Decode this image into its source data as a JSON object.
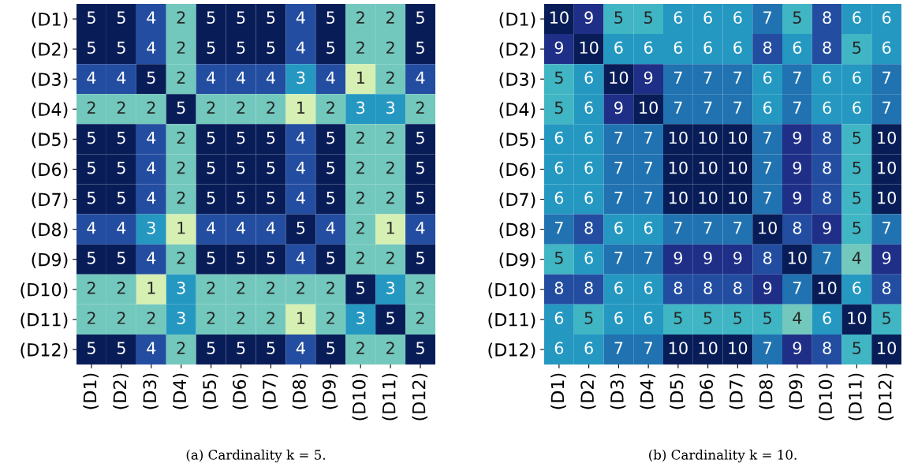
{
  "chart_data": [
    {
      "type": "heatmap",
      "categories": [
        "(D1)",
        "(D2)",
        "(D3)",
        "(D4)",
        "(D5)",
        "(D6)",
        "(D7)",
        "(D8)",
        "(D9)",
        "(D10)",
        "(D11)",
        "(D12)"
      ],
      "y_categories": [
        "(D1)",
        "(D2)",
        "(D3)",
        "(D4)",
        "(D5)",
        "(D6)",
        "(D7)",
        "(D8)",
        "(D9)",
        "(D10)",
        "(D11)",
        "(D12)"
      ],
      "cells": [
        [
          5,
          5,
          4,
          2,
          5,
          5,
          5,
          4,
          5,
          2,
          2,
          5
        ],
        [
          5,
          5,
          4,
          2,
          5,
          5,
          5,
          4,
          5,
          2,
          2,
          5
        ],
        [
          4,
          4,
          5,
          2,
          4,
          4,
          4,
          3,
          4,
          1,
          2,
          4
        ],
        [
          2,
          2,
          2,
          5,
          2,
          2,
          2,
          1,
          2,
          3,
          3,
          2
        ],
        [
          5,
          5,
          4,
          2,
          5,
          5,
          5,
          4,
          5,
          2,
          2,
          5
        ],
        [
          5,
          5,
          4,
          2,
          5,
          5,
          5,
          4,
          5,
          2,
          2,
          5
        ],
        [
          5,
          5,
          4,
          2,
          5,
          5,
          5,
          4,
          5,
          2,
          2,
          5
        ],
        [
          4,
          4,
          3,
          1,
          4,
          4,
          4,
          5,
          4,
          2,
          1,
          4
        ],
        [
          5,
          5,
          4,
          2,
          5,
          5,
          5,
          4,
          5,
          2,
          2,
          5
        ],
        [
          2,
          2,
          1,
          3,
          2,
          2,
          2,
          2,
          2,
          5,
          3,
          2
        ],
        [
          2,
          2,
          2,
          3,
          2,
          2,
          2,
          1,
          2,
          3,
          5,
          2
        ],
        [
          5,
          5,
          4,
          2,
          5,
          5,
          5,
          4,
          5,
          2,
          2,
          5
        ]
      ],
      "data_labels": true,
      "annotations": [
        "(a) Cardinality k = 5."
      ]
    },
    {
      "type": "heatmap",
      "categories": [
        "(D1)",
        "(D2)",
        "(D3)",
        "(D4)",
        "(D5)",
        "(D6)",
        "(D7)",
        "(D8)",
        "(D9)",
        "(D10)",
        "(D11)",
        "(D12)"
      ],
      "y_categories": [
        "(D1)",
        "(D2)",
        "(D3)",
        "(D4)",
        "(D5)",
        "(D6)",
        "(D7)",
        "(D8)",
        "(D9)",
        "(D10)",
        "(D11)",
        "(D12)"
      ],
      "cells": [
        [
          10,
          9,
          5,
          5,
          6,
          6,
          6,
          7,
          5,
          8,
          6,
          6
        ],
        [
          9,
          10,
          6,
          6,
          6,
          6,
          6,
          8,
          6,
          8,
          5,
          6
        ],
        [
          5,
          6,
          10,
          9,
          7,
          7,
          7,
          6,
          7,
          6,
          6,
          7
        ],
        [
          5,
          6,
          9,
          10,
          7,
          7,
          7,
          6,
          7,
          6,
          6,
          7
        ],
        [
          6,
          6,
          7,
          7,
          10,
          10,
          10,
          7,
          9,
          8,
          5,
          10
        ],
        [
          6,
          6,
          7,
          7,
          10,
          10,
          10,
          7,
          9,
          8,
          5,
          10
        ],
        [
          6,
          6,
          7,
          7,
          10,
          10,
          10,
          7,
          9,
          8,
          5,
          10
        ],
        [
          7,
          8,
          6,
          6,
          7,
          7,
          7,
          10,
          8,
          9,
          5,
          7
        ],
        [
          5,
          6,
          7,
          7,
          9,
          9,
          9,
          8,
          10,
          7,
          4,
          9
        ],
        [
          8,
          8,
          6,
          6,
          8,
          8,
          8,
          9,
          7,
          10,
          6,
          8
        ],
        [
          6,
          5,
          6,
          6,
          5,
          5,
          5,
          5,
          4,
          6,
          10,
          5
        ],
        [
          6,
          6,
          7,
          7,
          10,
          10,
          10,
          7,
          9,
          8,
          5,
          10
        ]
      ],
      "data_labels": true,
      "annotations": [
        "(b) Cardinality k = 10."
      ]
    }
  ]
}
